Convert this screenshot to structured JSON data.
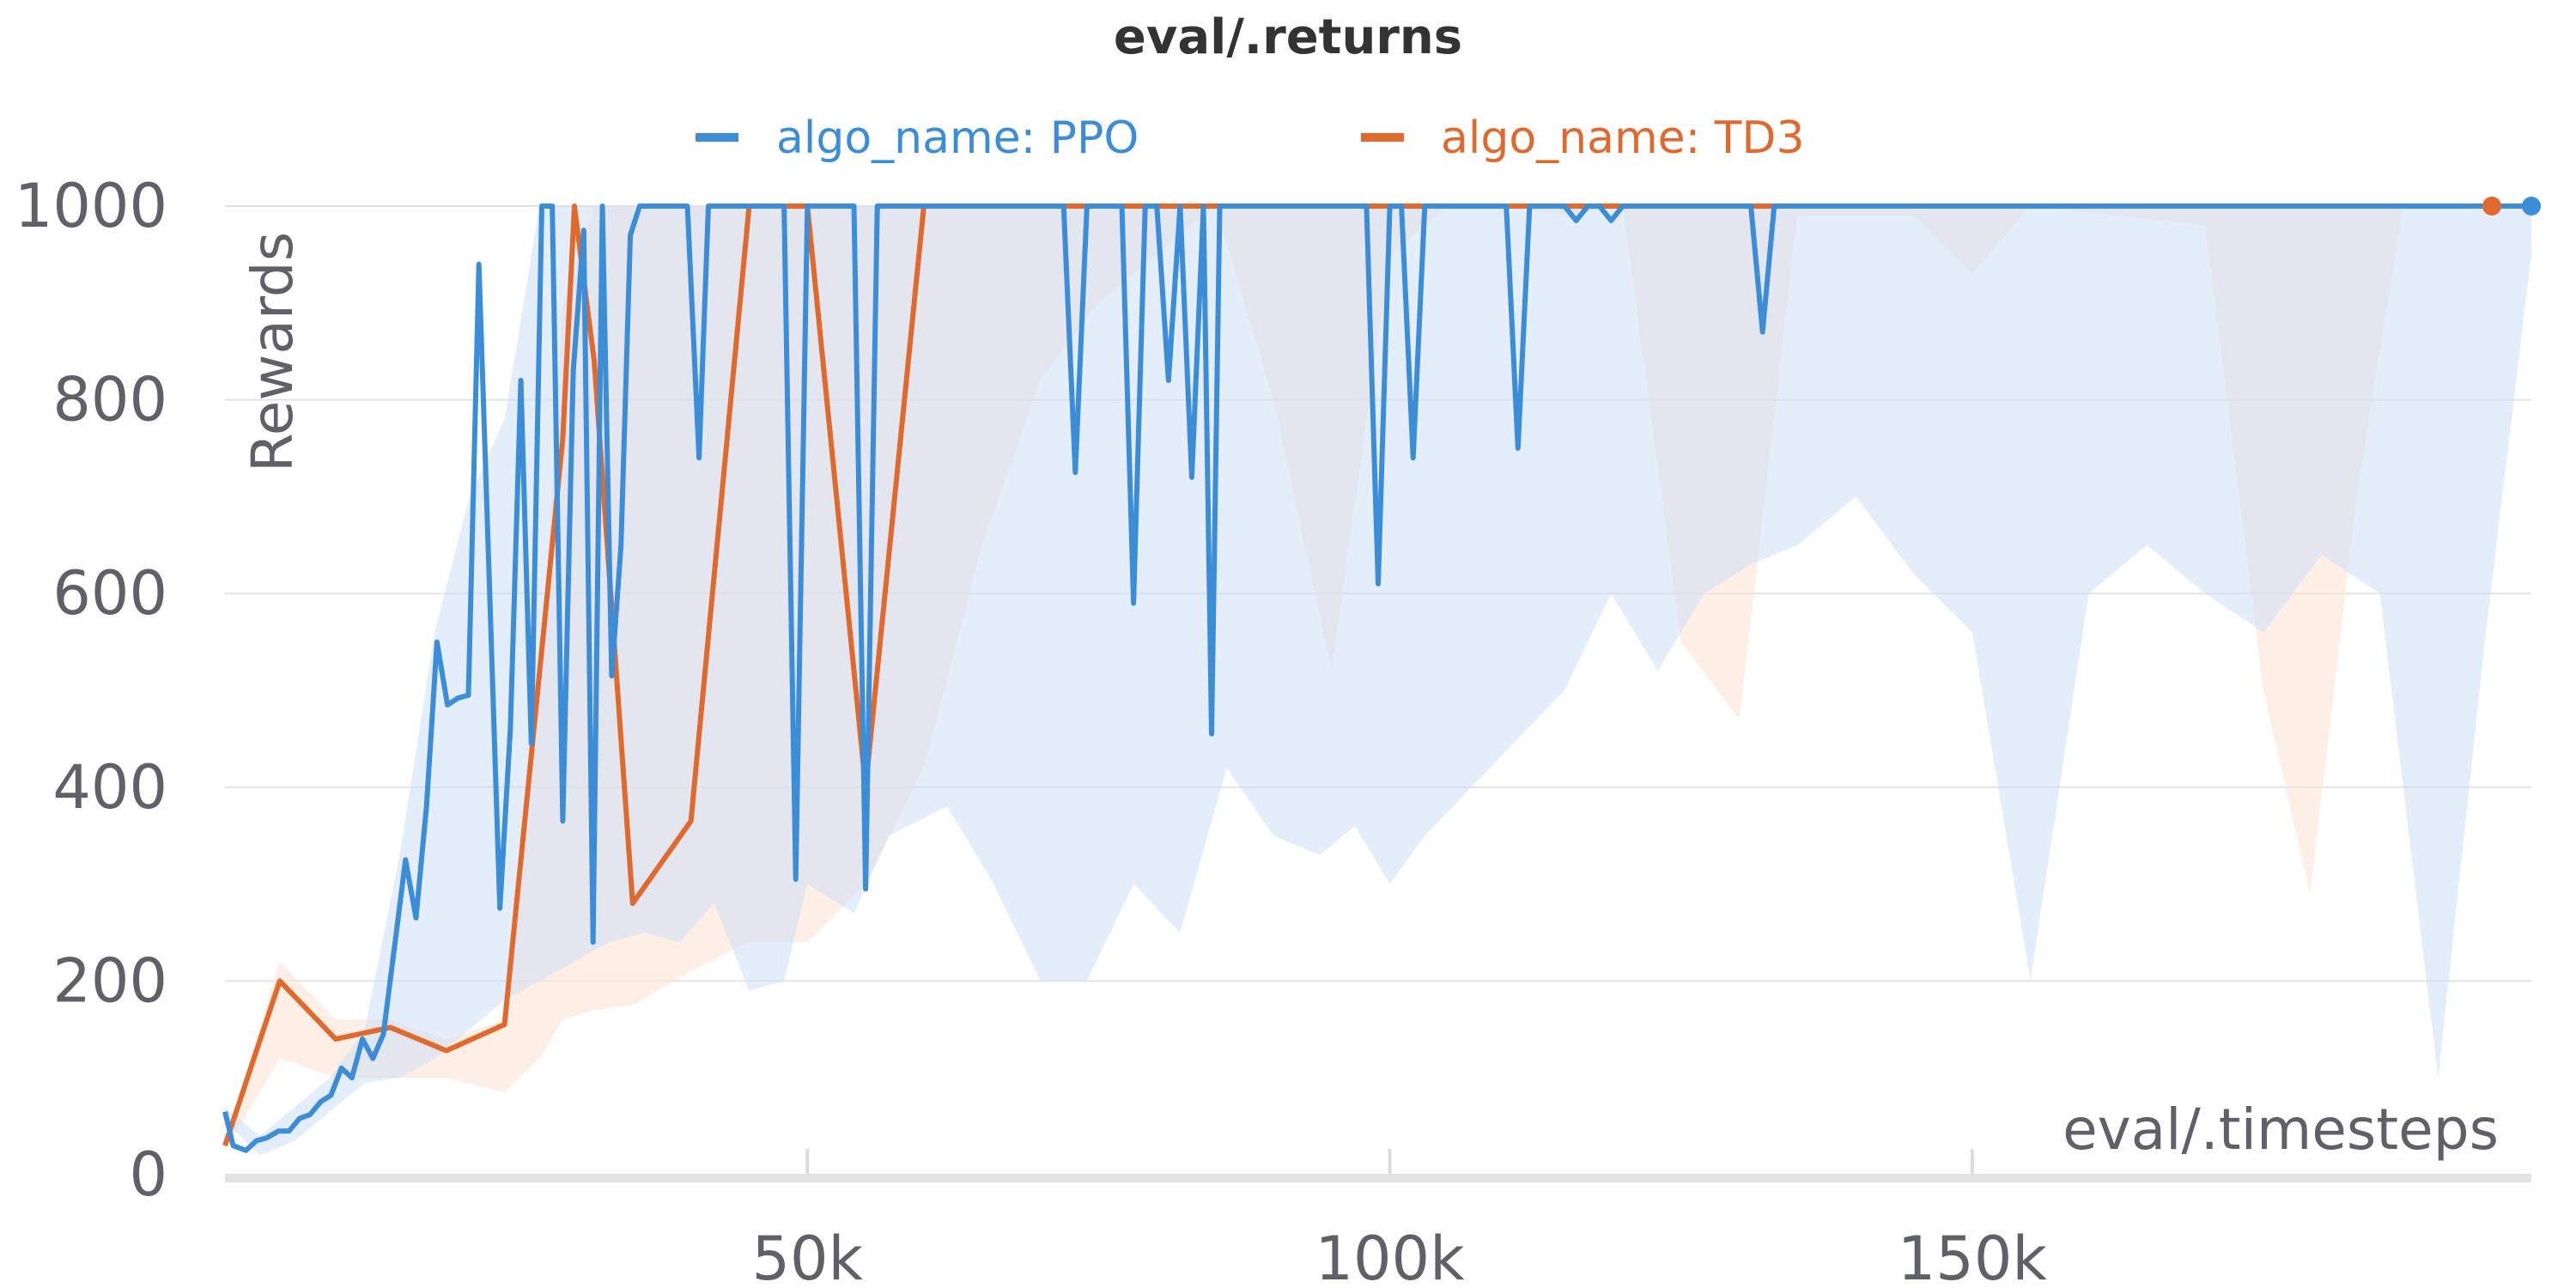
{
  "chart_data": {
    "type": "line",
    "title": "eval/.returns",
    "xlabel": "eval/.timesteps",
    "ylabel": "Rewards",
    "xlim": [
      0,
      198000
    ],
    "ylim": [
      0,
      1000
    ],
    "x_ticks": [
      50000,
      100000,
      150000
    ],
    "x_tick_labels": [
      "50k",
      "100k",
      "150k"
    ],
    "y_ticks": [
      0,
      200,
      400,
      600,
      800,
      1000
    ],
    "y_tick_labels": [
      "0",
      "200",
      "400",
      "600",
      "800",
      "1000"
    ],
    "grid": true,
    "legend_position": "top-center",
    "series": [
      {
        "name": "algo_name: PPO",
        "color": "#3a8dd6",
        "band_color": "#cde0f5",
        "points": [
          [
            0,
            65
          ],
          [
            700,
            30
          ],
          [
            1800,
            25
          ],
          [
            2700,
            35
          ],
          [
            3600,
            38
          ],
          [
            4600,
            45
          ],
          [
            5500,
            45
          ],
          [
            6400,
            58
          ],
          [
            7300,
            62
          ],
          [
            8200,
            75
          ],
          [
            9100,
            82
          ],
          [
            10000,
            110
          ],
          [
            10900,
            100
          ],
          [
            11800,
            140
          ],
          [
            12700,
            120
          ],
          [
            13600,
            145
          ],
          [
            14500,
            230
          ],
          [
            15500,
            325
          ],
          [
            16400,
            265
          ],
          [
            17300,
            380
          ],
          [
            18200,
            550
          ],
          [
            19100,
            485
          ],
          [
            20000,
            492
          ],
          [
            20900,
            495
          ],
          [
            21800,
            940
          ],
          [
            22700,
            610
          ],
          [
            23600,
            275
          ],
          [
            24500,
            460
          ],
          [
            25400,
            820
          ],
          [
            26300,
            445
          ],
          [
            27200,
            1000
          ],
          [
            28100,
            1000
          ],
          [
            29000,
            365
          ],
          [
            29900,
            830
          ],
          [
            30800,
            975
          ],
          [
            31600,
            240
          ],
          [
            32400,
            1000
          ],
          [
            33200,
            515
          ],
          [
            34000,
            650
          ],
          [
            34800,
            970
          ],
          [
            35600,
            1000
          ],
          [
            38000,
            1000
          ],
          [
            39700,
            1000
          ],
          [
            40700,
            740
          ],
          [
            41500,
            1000
          ],
          [
            48000,
            1000
          ],
          [
            49000,
            305
          ],
          [
            50000,
            1000
          ],
          [
            54000,
            1000
          ],
          [
            55000,
            295
          ],
          [
            56000,
            1000
          ],
          [
            72000,
            1000
          ],
          [
            73000,
            725
          ],
          [
            74000,
            1000
          ],
          [
            77000,
            1000
          ],
          [
            78000,
            590
          ],
          [
            79000,
            1000
          ],
          [
            80000,
            1000
          ],
          [
            81000,
            820
          ],
          [
            82000,
            1000
          ],
          [
            83000,
            720
          ],
          [
            84000,
            1000
          ],
          [
            84700,
            455
          ],
          [
            85400,
            1000
          ],
          [
            98000,
            1000
          ],
          [
            99000,
            610
          ],
          [
            100000,
            1000
          ],
          [
            101000,
            1000
          ],
          [
            102000,
            740
          ],
          [
            103000,
            1000
          ],
          [
            110000,
            1000
          ],
          [
            111000,
            750
          ],
          [
            112000,
            1000
          ],
          [
            115000,
            1000
          ],
          [
            116000,
            985
          ],
          [
            117000,
            1000
          ],
          [
            118000,
            1000
          ],
          [
            119000,
            985
          ],
          [
            120000,
            1000
          ],
          [
            131000,
            1000
          ],
          [
            132000,
            870
          ],
          [
            133000,
            1000
          ],
          [
            198000,
            1000
          ]
        ],
        "band": [
          [
            0,
            55,
            70
          ],
          [
            3000,
            20,
            40
          ],
          [
            6000,
            35,
            70
          ],
          [
            9000,
            65,
            100
          ],
          [
            12000,
            95,
            150
          ],
          [
            15000,
            100,
            330
          ],
          [
            18000,
            120,
            560
          ],
          [
            21000,
            150,
            700
          ],
          [
            24000,
            180,
            780
          ],
          [
            27000,
            200,
            1000
          ],
          [
            30000,
            220,
            1000
          ],
          [
            33000,
            240,
            1000
          ],
          [
            36000,
            250,
            1000
          ],
          [
            39000,
            240,
            1000
          ],
          [
            42000,
            280,
            1000
          ],
          [
            45000,
            190,
            1000
          ],
          [
            48000,
            200,
            1000
          ],
          [
            50000,
            300,
            1000
          ],
          [
            54000,
            270,
            1000
          ],
          [
            57000,
            350,
            1000
          ],
          [
            62000,
            380,
            1000
          ],
          [
            66000,
            300,
            1000
          ],
          [
            70000,
            200,
            1000
          ],
          [
            74000,
            200,
            1000
          ],
          [
            78000,
            300,
            1000
          ],
          [
            82000,
            250,
            1000
          ],
          [
            86000,
            420,
            1000
          ],
          [
            90000,
            350,
            1000
          ],
          [
            94000,
            330,
            1000
          ],
          [
            97000,
            360,
            1000
          ],
          [
            100000,
            300,
            1000
          ],
          [
            103000,
            350,
            1000
          ],
          [
            107000,
            400,
            1000
          ],
          [
            111000,
            450,
            1000
          ],
          [
            115000,
            500,
            1000
          ],
          [
            119000,
            600,
            1000
          ],
          [
            123000,
            520,
            1000
          ],
          [
            127000,
            600,
            1000
          ],
          [
            131000,
            630,
            1000
          ],
          [
            135000,
            650,
            1000
          ],
          [
            140000,
            700,
            1000
          ],
          [
            145000,
            620,
            1000
          ],
          [
            150000,
            560,
            1000
          ],
          [
            155000,
            200,
            1000
          ],
          [
            160000,
            600,
            1000
          ],
          [
            165000,
            650,
            1000
          ],
          [
            170000,
            600,
            1000
          ],
          [
            175000,
            560,
            1000
          ],
          [
            180000,
            640,
            1000
          ],
          [
            185000,
            600,
            1000
          ],
          [
            190000,
            100,
            1000
          ],
          [
            194000,
            550,
            1000
          ],
          [
            198000,
            950,
            1000
          ]
        ]
      },
      {
        "name": "algo_name: TD3",
        "color": "#e0692e",
        "band_color": "#fbe2d6",
        "points": [
          [
            0,
            30
          ],
          [
            4700,
            200
          ],
          [
            9500,
            140
          ],
          [
            14200,
            152
          ],
          [
            19000,
            128
          ],
          [
            24000,
            155
          ],
          [
            29000,
            760
          ],
          [
            30000,
            1000
          ],
          [
            31700,
            840
          ],
          [
            35000,
            280
          ],
          [
            40000,
            365
          ],
          [
            45000,
            1000
          ],
          [
            50000,
            1000
          ],
          [
            55000,
            400
          ],
          [
            60000,
            1000
          ],
          [
            198000,
            1000
          ]
        ],
        "band": [
          [
            0,
            25,
            35
          ],
          [
            4700,
            120,
            220
          ],
          [
            9500,
            100,
            160
          ],
          [
            14200,
            100,
            160
          ],
          [
            19000,
            100,
            140
          ],
          [
            24000,
            85,
            160
          ],
          [
            27000,
            120,
            500
          ],
          [
            29000,
            160,
            900
          ],
          [
            31700,
            170,
            1000
          ],
          [
            35000,
            175,
            1000
          ],
          [
            40000,
            210,
            1000
          ],
          [
            45000,
            240,
            1000
          ],
          [
            50000,
            240,
            1000
          ],
          [
            55000,
            300,
            1000
          ],
          [
            60000,
            420,
            1000
          ],
          [
            65000,
            650,
            1000
          ],
          [
            70000,
            820,
            1000
          ],
          [
            75000,
            900,
            1000
          ],
          [
            80000,
            950,
            1000
          ],
          [
            85000,
            1000,
            1000
          ],
          [
            90000,
            800,
            1000
          ],
          [
            95000,
            520,
            1000
          ],
          [
            100000,
            950,
            1000
          ],
          [
            105000,
            1000,
            1000
          ],
          [
            110000,
            1000,
            1000
          ],
          [
            115000,
            990,
            1000
          ],
          [
            120000,
            1000,
            1000
          ],
          [
            125000,
            550,
            1000
          ],
          [
            130000,
            470,
            1000
          ],
          [
            135000,
            990,
            1000
          ],
          [
            145000,
            990,
            1000
          ],
          [
            150000,
            930,
            1000
          ],
          [
            155000,
            1000,
            1000
          ],
          [
            170000,
            980,
            1000
          ],
          [
            175000,
            500,
            1000
          ],
          [
            179000,
            290,
            1000
          ],
          [
            183000,
            700,
            1000
          ],
          [
            187000,
            1000,
            1000
          ],
          [
            198000,
            1000,
            1000
          ]
        ]
      }
    ]
  }
}
